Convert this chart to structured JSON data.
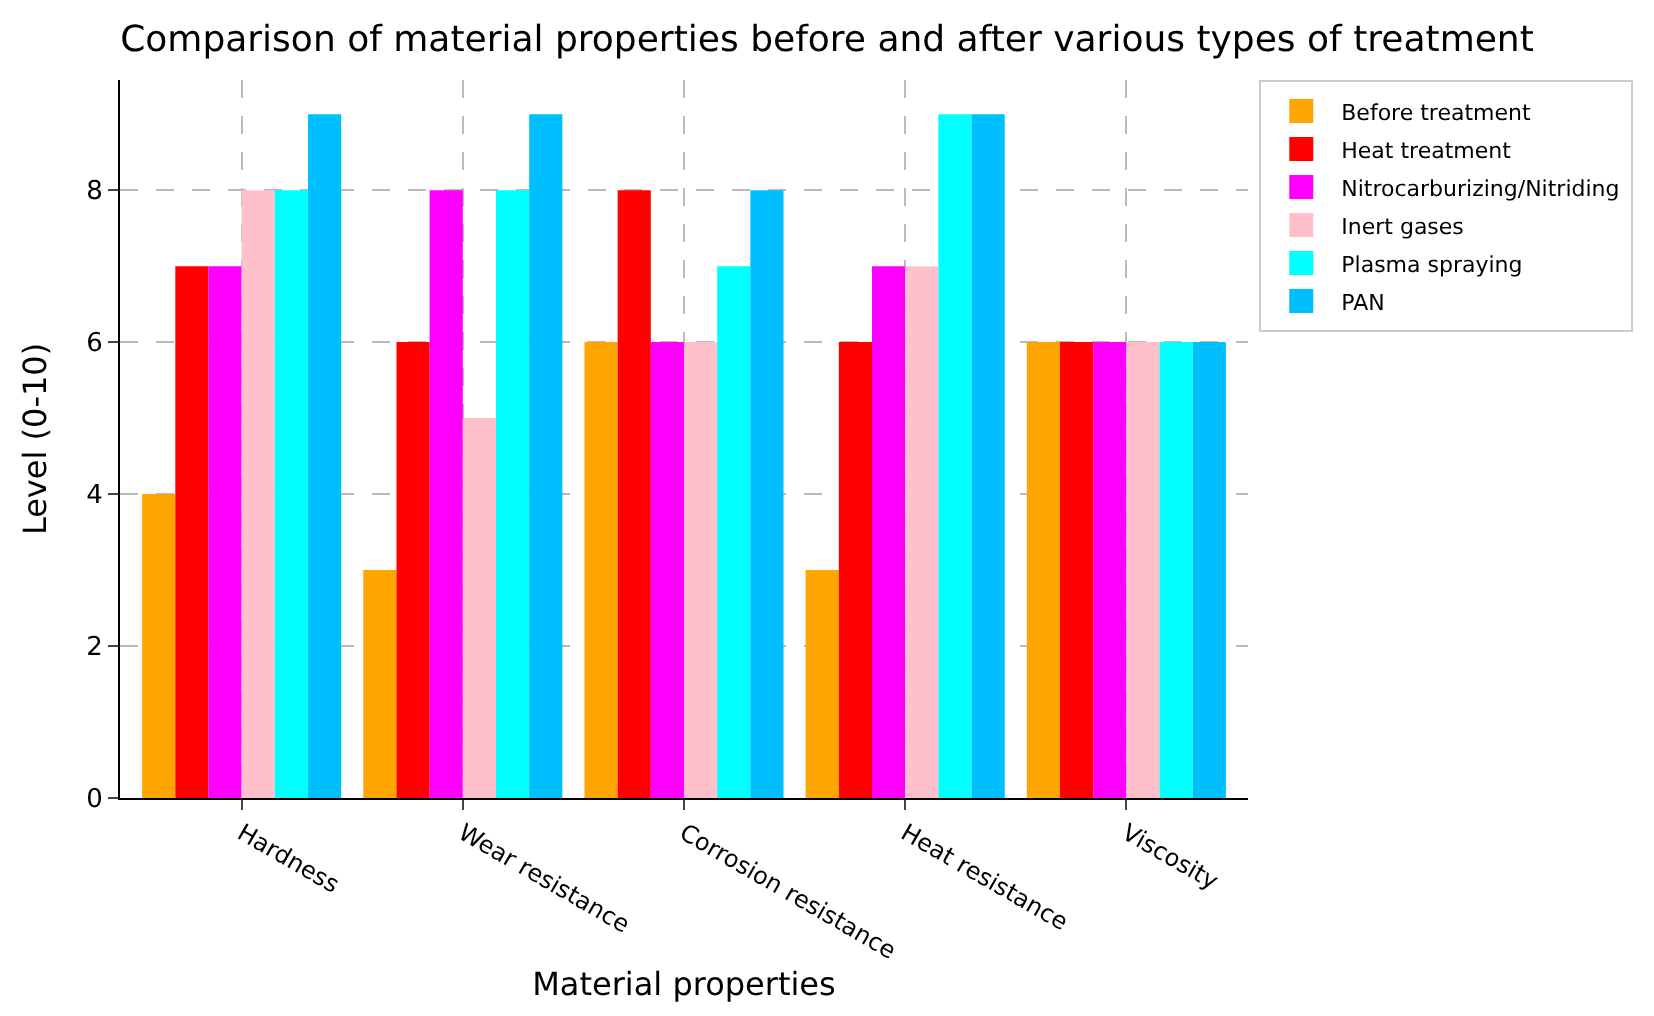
{
  "chart_data": {
    "type": "bar",
    "title": "Comparison of material properties before and after various types of treatment",
    "xlabel": "Material properties",
    "ylabel": "Level (0-10)",
    "categories": [
      "Hardness",
      "Wear resistance",
      "Corrosion resistance",
      "Heat resistance",
      "Viscosity"
    ],
    "series": [
      {
        "name": "Before treatment",
        "color": "#ffa500",
        "values": [
          4,
          3,
          6,
          3,
          6
        ]
      },
      {
        "name": "Heat treatment",
        "color": "#ff0000",
        "values": [
          7,
          6,
          8,
          6,
          6
        ]
      },
      {
        "name": "Nitrocarburizing/Nitriding",
        "color": "#ff00ff",
        "values": [
          7,
          8,
          6,
          7,
          6
        ]
      },
      {
        "name": "Inert gases",
        "color": "#ffc0cb",
        "values": [
          8,
          5,
          6,
          7,
          6
        ]
      },
      {
        "name": "Plasma spraying",
        "color": "#00ffff",
        "values": [
          8,
          8,
          7,
          9,
          6
        ]
      },
      {
        "name": "PAN",
        "color": "#00bfff",
        "values": [
          9,
          9,
          8,
          9,
          6
        ]
      }
    ],
    "ylim": [
      0,
      9.45
    ],
    "yticks": [
      0,
      2,
      4,
      6,
      8
    ],
    "grid": true,
    "legend": "top right"
  }
}
